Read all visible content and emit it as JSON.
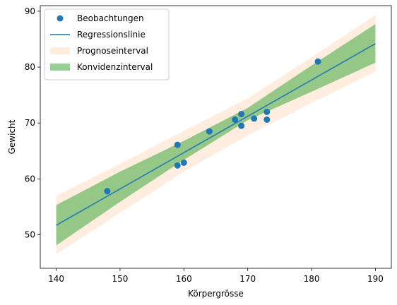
{
  "chart_data": {
    "type": "scatter",
    "title": "",
    "xlabel": "Körpergrösse",
    "ylabel": "Gewicht",
    "xlim": [
      137.5,
      192.5
    ],
    "ylim": [
      44,
      91
    ],
    "xticks": [
      140,
      150,
      160,
      170,
      180,
      190
    ],
    "yticks": [
      50,
      60,
      70,
      80,
      90
    ],
    "grid": false,
    "legend_position": "top-left",
    "series": [
      {
        "name": "Beobachtungen",
        "kind": "scatter",
        "color": "#1f77b4",
        "points": [
          [
            148,
            57.8
          ],
          [
            159,
            66.1
          ],
          [
            159,
            62.4
          ],
          [
            160,
            62.9
          ],
          [
            164,
            68.5
          ],
          [
            168,
            70.6
          ],
          [
            169,
            71.6
          ],
          [
            169,
            69.5
          ],
          [
            171,
            70.8
          ],
          [
            173,
            72.0
          ],
          [
            173,
            70.6
          ],
          [
            181,
            81.0
          ]
        ]
      },
      {
        "name": "Regressionslinie",
        "kind": "line",
        "color": "#1f77b4",
        "x": [
          140,
          190
        ],
        "y": [
          51.7,
          84.2
        ]
      },
      {
        "name": "Prognoseinterval",
        "kind": "band",
        "color": "#ffe8d6",
        "opacity": 0.75,
        "x": [
          140,
          150,
          160,
          170,
          180,
          190
        ],
        "lower": [
          46.5,
          53.9,
          61.3,
          67.8,
          73.6,
          79.2
        ],
        "upper": [
          57.0,
          62.7,
          68.6,
          74.4,
          81.8,
          89.3
        ]
      },
      {
        "name": "Konvidenzinterval",
        "kind": "band",
        "color": "#2ca02c",
        "opacity": 0.5,
        "x": [
          140,
          150,
          160,
          170,
          180,
          190
        ],
        "lower": [
          48.1,
          55.9,
          63.4,
          70.5,
          75.6,
          80.8
        ],
        "upper": [
          55.3,
          61.3,
          66.8,
          72.7,
          80.3,
          87.7
        ]
      }
    ]
  }
}
